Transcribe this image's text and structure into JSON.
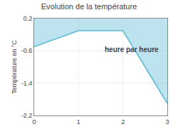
{
  "chart_data": {
    "type": "area",
    "title": "Evolution de la température",
    "ylabel": "Température en °C",
    "annotations": [
      "heure par heure"
    ],
    "x": [
      0,
      1,
      2,
      3
    ],
    "values": [
      -0.5,
      -0.1,
      -0.1,
      -1.9
    ],
    "color": "#5bb8d4",
    "xlim": [
      0,
      3
    ],
    "xticks": [
      0,
      1,
      2,
      3
    ],
    "ylim": [
      -2.2,
      0.2
    ],
    "yticks": [
      0.2,
      -0.6,
      -1.4,
      -2.2
    ],
    "grid": true
  }
}
